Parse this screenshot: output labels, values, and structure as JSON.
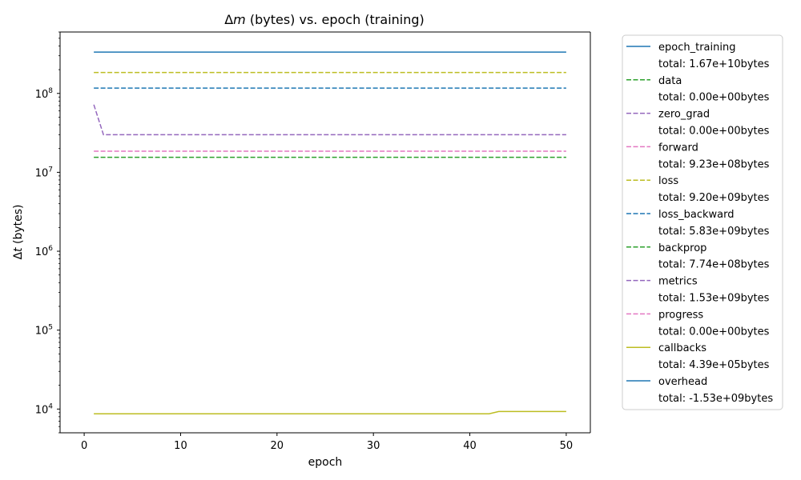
{
  "chart_data": {
    "type": "line",
    "title_prefix": "Δ",
    "title_var": "m",
    "title_suffix": " (bytes) vs. epoch (training)",
    "xlabel": "epoch",
    "ylabel_prefix": "Δ",
    "ylabel_var": "t",
    "ylabel_suffix": " (bytes)",
    "xlim": [
      -2.5,
      52.5
    ],
    "ylim": [
      5000,
      600000000
    ],
    "yscale": "log",
    "x_ticks": [
      0,
      10,
      20,
      30,
      40,
      50
    ],
    "y_ticks": [
      {
        "value": 10000,
        "base": "10",
        "exp": "4"
      },
      {
        "value": 100000,
        "base": "10",
        "exp": "5"
      },
      {
        "value": 1000000,
        "base": "10",
        "exp": "6"
      },
      {
        "value": 10000000,
        "base": "10",
        "exp": "7"
      },
      {
        "value": 100000000,
        "base": "10",
        "exp": "8"
      }
    ],
    "grid": false,
    "legend_placement": "outside-right",
    "series": [
      {
        "name": "epoch_training",
        "total": "total: 1.67e+10bytes",
        "color": "#1f77b4",
        "dash": "solid",
        "segments": [
          [
            1,
            334000000
          ],
          [
            50,
            334000000
          ]
        ]
      },
      {
        "name": "data",
        "total": "total: 0.00e+00bytes",
        "color": "#2ca02c",
        "dash": "dashed",
        "segments": []
      },
      {
        "name": "zero_grad",
        "total": "total: 0.00e+00bytes",
        "color": "#9467bd",
        "dash": "dashed",
        "segments": []
      },
      {
        "name": "forward",
        "total": "total: 9.23e+08bytes",
        "color": "#e377c2",
        "dash": "dashed",
        "segments": [
          [
            1,
            18500000
          ],
          [
            50,
            18500000
          ]
        ]
      },
      {
        "name": "loss",
        "total": "total: 9.20e+09bytes",
        "color": "#bcbd22",
        "dash": "dashed",
        "segments": [
          [
            1,
            184000000
          ],
          [
            50,
            184000000
          ]
        ]
      },
      {
        "name": "loss_backward",
        "total": "total: 5.83e+09bytes",
        "color": "#1f77b4",
        "dash": "dashed",
        "segments": [
          [
            1,
            116600000
          ],
          [
            50,
            116600000
          ]
        ]
      },
      {
        "name": "backprop",
        "total": "total: 7.74e+08bytes",
        "color": "#2ca02c",
        "dash": "dashed",
        "segments": [
          [
            1,
            15500000
          ],
          [
            50,
            15500000
          ]
        ]
      },
      {
        "name": "metrics",
        "total": "total: 1.53e+09bytes",
        "color": "#9467bd",
        "dash": "dashed",
        "segments": [
          [
            1,
            72000000
          ],
          [
            2,
            30000000
          ],
          [
            50,
            30000000
          ]
        ]
      },
      {
        "name": "progress",
        "total": "total: 0.00e+00bytes",
        "color": "#e377c2",
        "dash": "dashed",
        "segments": []
      },
      {
        "name": "callbacks",
        "total": "total: 4.39e+05bytes",
        "color": "#bcbd22",
        "dash": "solid",
        "segments": [
          [
            1,
            8700
          ],
          [
            42,
            8700
          ],
          [
            43,
            9300
          ],
          [
            50,
            9300
          ]
        ]
      },
      {
        "name": "overhead",
        "total": "total: -1.53e+09bytes",
        "color": "#1f77b4",
        "dash": "solid",
        "segments": []
      }
    ]
  }
}
